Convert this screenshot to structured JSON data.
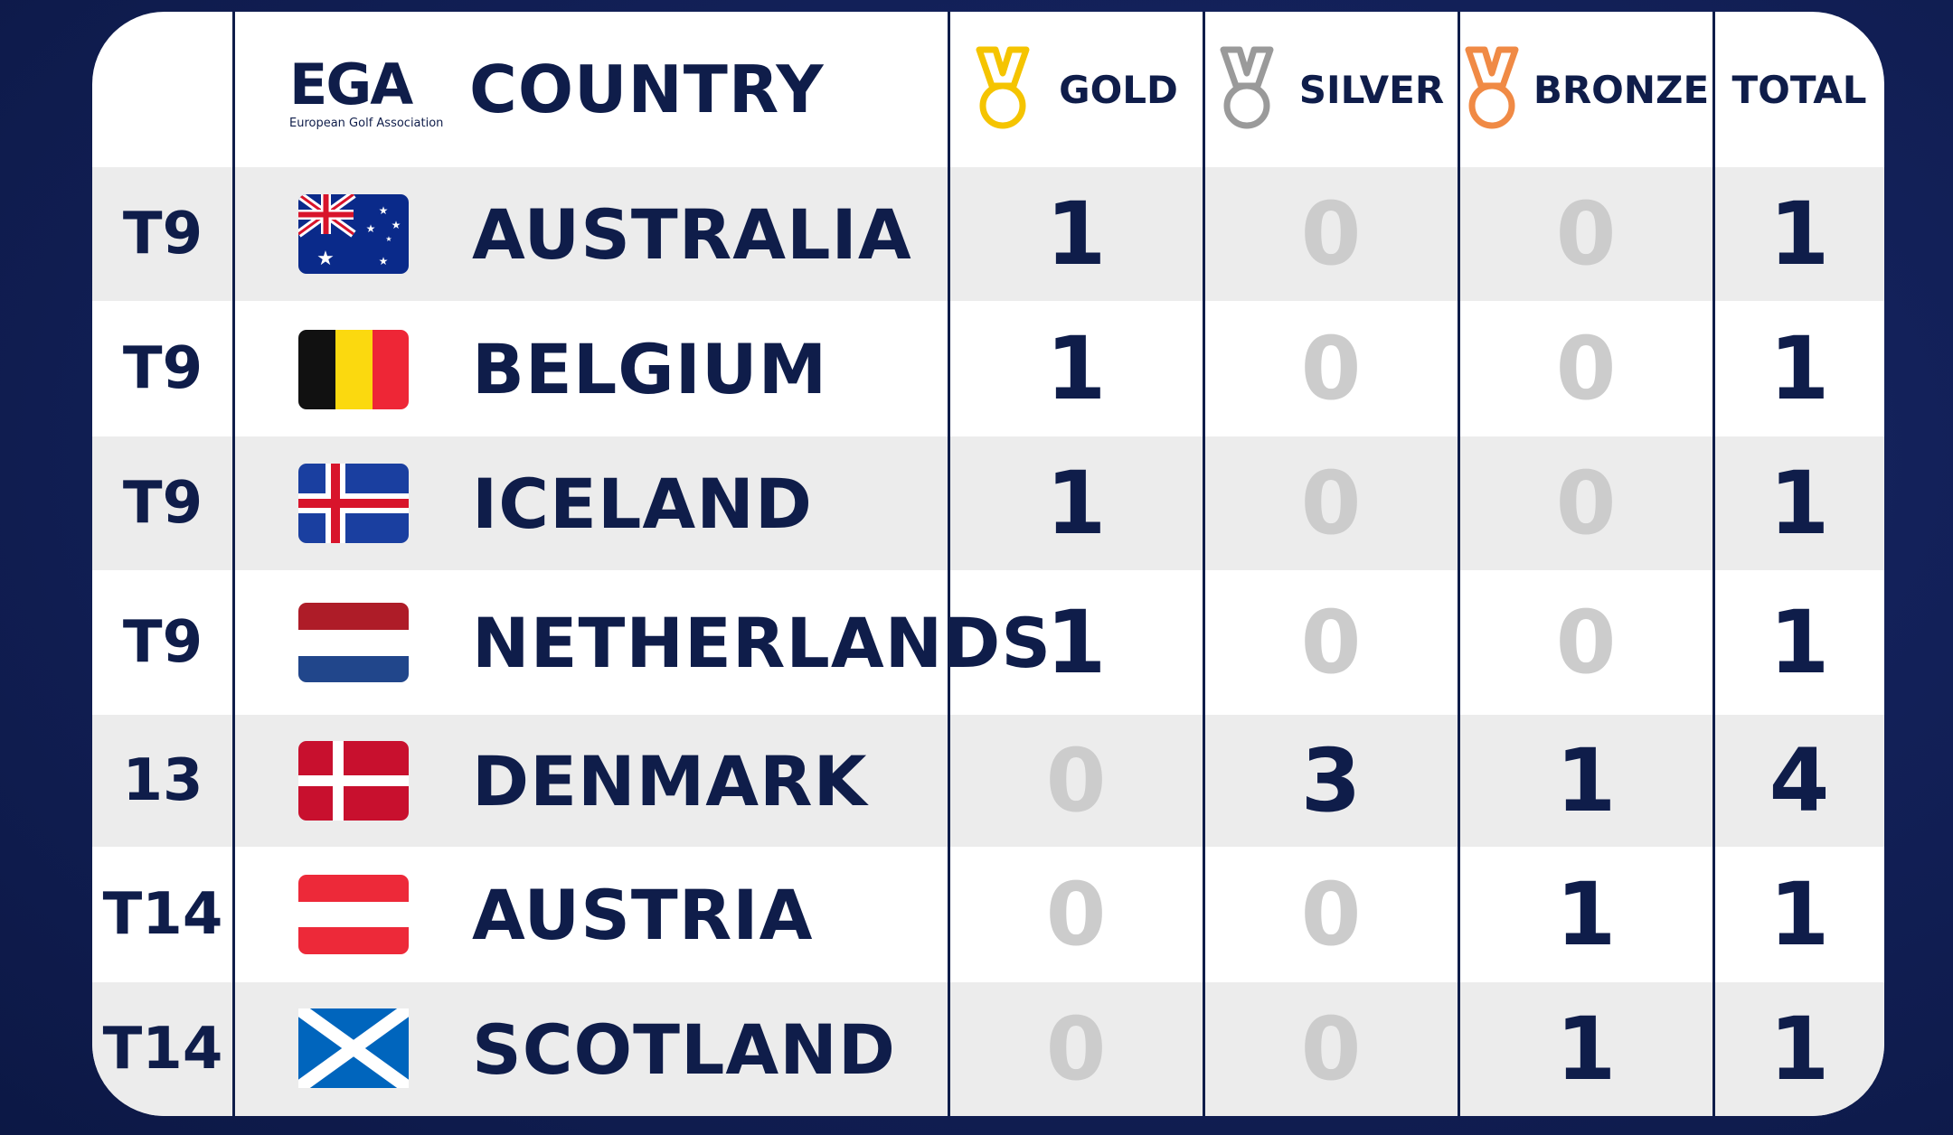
{
  "header": {
    "logo_text": "EGA",
    "logo_subtitle": "European Golf Association",
    "country": "COUNTRY",
    "gold": "GOLD",
    "silver": "SILVER",
    "bronze": "BRONZE",
    "total": "TOTAL"
  },
  "colors": {
    "gold": "#f5c400",
    "silver": "#9a9a9a",
    "bronze": "#f08a45",
    "navy": "#0f1d4a",
    "zero": "#cccccc"
  },
  "rows": [
    {
      "rank": "T9",
      "flag": "australia-flag",
      "country": "AUSTRALIA",
      "gold": "1",
      "silver": "0",
      "bronze": "0",
      "total": "1"
    },
    {
      "rank": "T9",
      "flag": "belgium-flag",
      "country": "BELGIUM",
      "gold": "1",
      "silver": "0",
      "bronze": "0",
      "total": "1"
    },
    {
      "rank": "T9",
      "flag": "iceland-flag",
      "country": "ICELAND",
      "gold": "1",
      "silver": "0",
      "bronze": "0",
      "total": "1"
    },
    {
      "rank": "T9",
      "flag": "netherlands-flag",
      "country": "NETHERLANDS",
      "gold": "1",
      "silver": "0",
      "bronze": "0",
      "total": "1"
    },
    {
      "rank": "13",
      "flag": "denmark-flag",
      "country": "DENMARK",
      "gold": "0",
      "silver": "3",
      "bronze": "1",
      "total": "4"
    },
    {
      "rank": "T14",
      "flag": "austria-flag",
      "country": "AUSTRIA",
      "gold": "0",
      "silver": "0",
      "bronze": "1",
      "total": "1"
    },
    {
      "rank": "T14",
      "flag": "scotland-flag",
      "country": "SCOTLAND",
      "gold": "0",
      "silver": "0",
      "bronze": "1",
      "total": "1"
    }
  ]
}
